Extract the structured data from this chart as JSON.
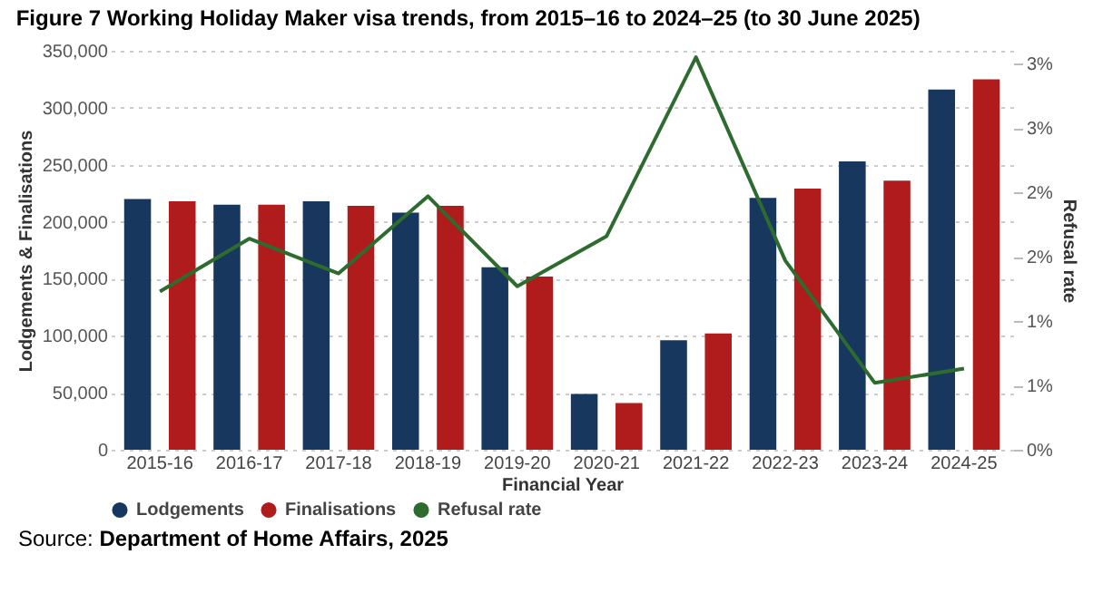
{
  "chart_data": {
    "type": "bar",
    "title": "Figure 7 Working Holiday Maker visa trends, from 2015–16 to 2024–25 (to 30 June 2025)",
    "xlabel": "Financial Year",
    "ylabel": "Lodgements & Finalisations",
    "y2label": "Refusal rate",
    "categories": [
      "2015-16",
      "2016-17",
      "2017-18",
      "2018-19",
      "2019-20",
      "2020-21",
      "2021-22",
      "2022-23",
      "2023-24",
      "2024-25"
    ],
    "series": [
      {
        "name": "Lodgements",
        "color": "#17375e",
        "values": [
          220000,
          215000,
          218000,
          208000,
          160000,
          49000,
          96000,
          221000,
          253000,
          316000
        ]
      },
      {
        "name": "Finalisations",
        "color": "#b01c1c",
        "values": [
          218000,
          215000,
          214000,
          214000,
          152000,
          41000,
          102000,
          229000,
          236000,
          325000
        ]
      },
      {
        "name": "Refusal rate",
        "type": "line",
        "axis": "y2",
        "color": "#2e6b2e",
        "values": [
          1.23,
          1.64,
          1.37,
          1.97,
          1.27,
          1.66,
          3.05,
          1.47,
          0.52,
          0.63
        ]
      }
    ],
    "ylim": [
      0,
      350000
    ],
    "yticks": [
      0,
      {
        "value": 50000,
        "label": "50,000"
      },
      {
        "value": 100000,
        "label": "100,000"
      },
      {
        "value": 150000,
        "label": "150,000"
      },
      {
        "value": 200000,
        "label": "200,000"
      },
      {
        "value": 250000,
        "label": "250,000"
      },
      {
        "value": 300000,
        "label": "300,000"
      },
      {
        "value": 350000,
        "label": "350,000"
      }
    ],
    "y2lim": [
      0,
      3.1
    ],
    "y2ticks": [
      {
        "value": 0,
        "label": "0%"
      },
      {
        "value": 0.5,
        "label": "1%"
      },
      {
        "value": 1,
        "label": "1%"
      },
      {
        "value": 1.5,
        "label": "2%"
      },
      {
        "value": 2,
        "label": "2%"
      },
      {
        "value": 2.5,
        "label": "3%"
      },
      {
        "value": 3,
        "label": "3%"
      }
    ],
    "grid": "y",
    "legend": "bottom",
    "annotations": [
      "Source: Department of Home Affairs, 2025"
    ]
  }
}
